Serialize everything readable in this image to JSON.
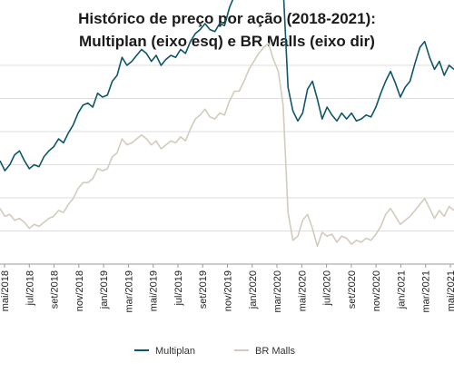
{
  "chart_data": {
    "type": "line",
    "title_line1": "Histórico de preço por ação (2018-2021):",
    "title_line2": "Multiplan (eixo esq) e BR Malls (eixo dir)",
    "x_tick_labels": [
      "mai/2018",
      "jul/2018",
      "set/2018",
      "nov/2018",
      "jan/2019",
      "mar/2019",
      "mai/2019",
      "jul/2019",
      "set/2019",
      "nov/2019",
      "jan/2020",
      "mar/2020",
      "mai/2020",
      "jul/2020",
      "set/2020",
      "nov/2020",
      "jan/2021",
      "mar/2021",
      "mai/2021"
    ],
    "grid": "horizontal",
    "legend_position": "bottom",
    "colors": {
      "multiplan": "#0f5668",
      "brmalls": "#d3cbbd"
    },
    "series": [
      {
        "name": "Multiplan",
        "axis": "left",
        "values": [
          52,
          47,
          50,
          55,
          57,
          52,
          48,
          50,
          49,
          54,
          57,
          59,
          63,
          61,
          66,
          70,
          76,
          80,
          81,
          79,
          86,
          84,
          85,
          92,
          95,
          104,
          100,
          102,
          105,
          108,
          106,
          102,
          105,
          100,
          103,
          105,
          104,
          108,
          106,
          112,
          116,
          118,
          121,
          118,
          117,
          121,
          120,
          129,
          135,
          136,
          143,
          151,
          156,
          162,
          164,
          165,
          158,
          154,
          140,
          89,
          77,
          72,
          76,
          88,
          92,
          83,
          73,
          79,
          75,
          72,
          76,
          73,
          76,
          72,
          73,
          75,
          74,
          79,
          86,
          92,
          97,
          91,
          84,
          89,
          92,
          101,
          109,
          112,
          104,
          98,
          102,
          95,
          100,
          98
        ],
        "range": [
          0,
          100
        ],
        "note": "values are relative to the unlabeled left axis range"
      },
      {
        "name": "BR Malls",
        "axis": "right",
        "values": [
          28,
          24,
          25,
          22,
          23,
          21,
          18,
          20,
          19,
          21,
          23,
          24,
          27,
          26,
          30,
          33,
          38,
          41,
          41,
          43,
          48,
          47,
          48,
          54,
          56,
          63,
          60,
          61,
          63,
          65,
          63,
          60,
          62,
          58,
          60,
          62,
          61,
          64,
          62,
          68,
          73,
          75,
          78,
          74,
          73,
          76,
          75,
          82,
          87,
          87,
          92,
          98,
          102,
          106,
          109,
          111,
          103,
          97,
          80,
          26,
          12,
          14,
          22,
          25,
          18,
          9,
          16,
          14,
          15,
          11,
          14,
          13,
          10,
          12,
          11,
          13,
          12,
          15,
          19,
          25,
          28,
          24,
          20,
          22,
          24,
          27,
          30,
          33,
          28,
          23,
          27,
          24,
          29,
          27
        ],
        "range": [
          0,
          100
        ],
        "note": "values are relative to the unlabeled right axis range"
      }
    ]
  }
}
